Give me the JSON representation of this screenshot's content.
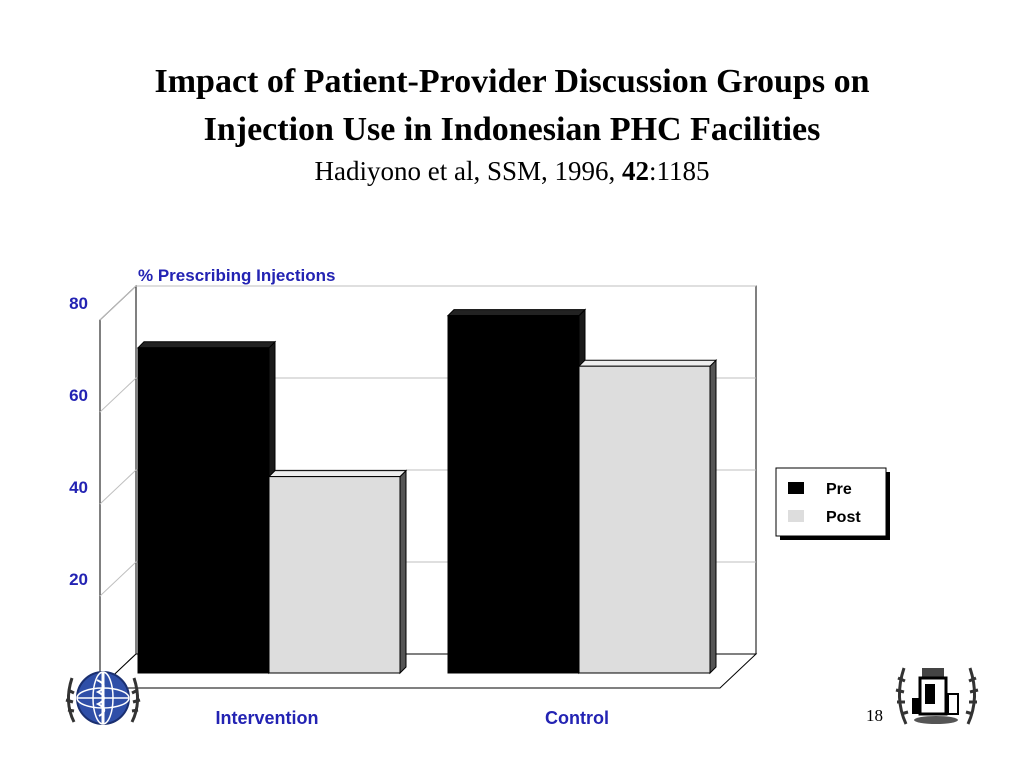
{
  "slide": {
    "title_line1": "Impact of Patient-Provider Discussion Groups on",
    "title_line2": "Injection Use in Indonesian PHC Facilities",
    "citation_prefix": "Hadiyono et al, SSM, 1996, ",
    "citation_volume": "42",
    "citation_suffix": ":1185",
    "slide_number": "18",
    "logos": [
      "who-emblem-icon",
      "essential-drugs-emblem-icon"
    ]
  },
  "chart_data": {
    "type": "bar",
    "title": "% Prescribing Injections",
    "categories": [
      "Intervention",
      "Control"
    ],
    "series": [
      {
        "name": "Pre",
        "values": [
          72,
          79
        ],
        "color": "#000000"
      },
      {
        "name": "Post",
        "values": [
          44,
          68
        ],
        "color": "#dddddd"
      }
    ],
    "yticks": [
      20,
      40,
      60,
      80
    ],
    "ylim": [
      0,
      80
    ],
    "grid": true,
    "legend_position": "right",
    "three_d": true,
    "colors": {
      "axis_labels": "#2323b3",
      "grid": "#bfbfbf"
    }
  }
}
